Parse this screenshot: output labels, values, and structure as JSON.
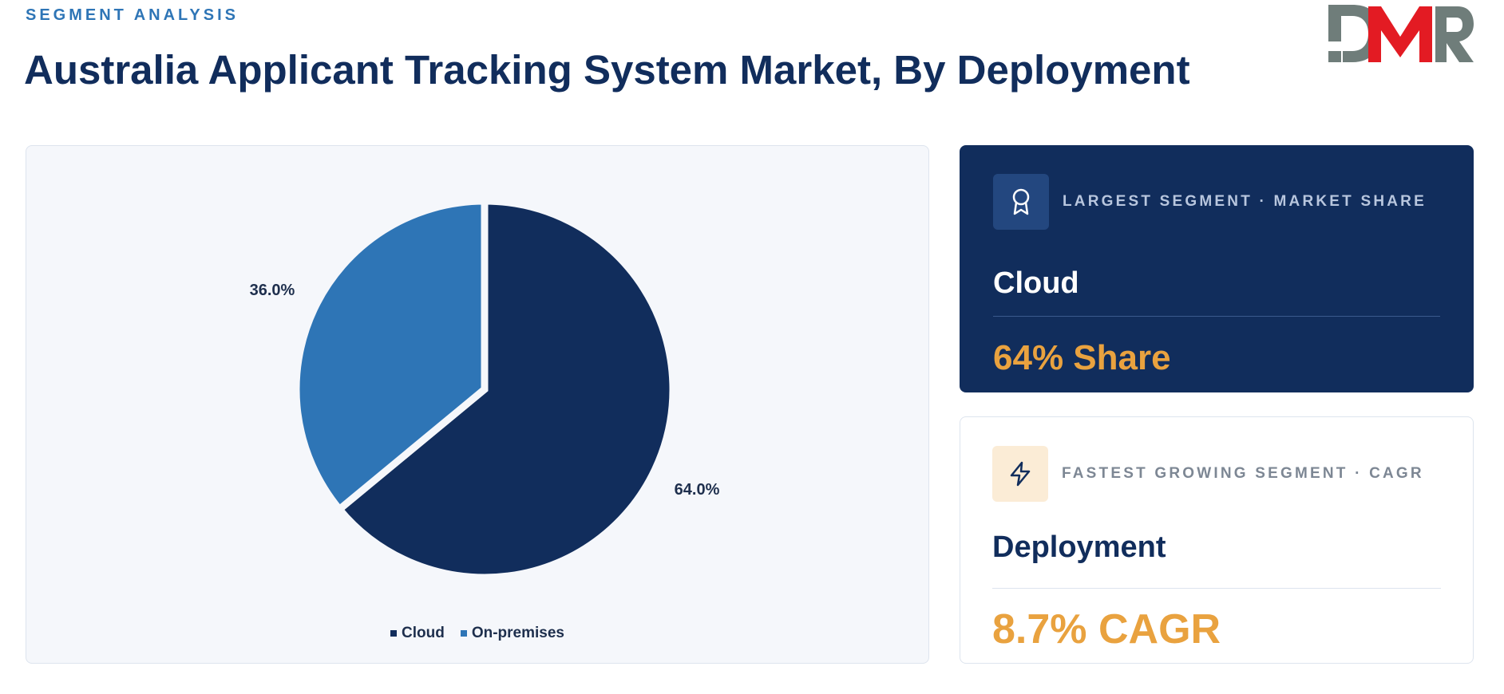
{
  "header": {
    "eyebrow": "SEGMENT ANALYSIS",
    "title": "Australia Applicant Tracking System Market, By Deployment"
  },
  "logo": {
    "text": "DMR",
    "colors": {
      "d": "#6f7d7a",
      "m": "#e31b23",
      "r": "#6f7d7a"
    }
  },
  "chart_data": {
    "type": "pie",
    "title": "",
    "categories": [
      "Cloud",
      "On-premises"
    ],
    "values": [
      64.0,
      36.0
    ],
    "labels": [
      "64.0%",
      "36.0%"
    ],
    "colors": [
      "#112d5c",
      "#2e75b6"
    ],
    "legend": "bottom-center",
    "start": "12 o'clock, clockwise"
  },
  "cards": {
    "largest": {
      "icon": "award-ribbon-icon",
      "tag": "LARGEST SEGMENT  ·  MARKET SHARE",
      "name": "Cloud",
      "value": "64% Share"
    },
    "fastest": {
      "icon": "lightning-bolt-icon",
      "tag": "FASTEST GROWING SEGMENT  ·  CAGR",
      "name": "Deployment",
      "value": "8.7% CAGR"
    }
  },
  "colors": {
    "navy": "#112d5c",
    "blue": "#2e75b6",
    "accent": "#e9a23f"
  }
}
